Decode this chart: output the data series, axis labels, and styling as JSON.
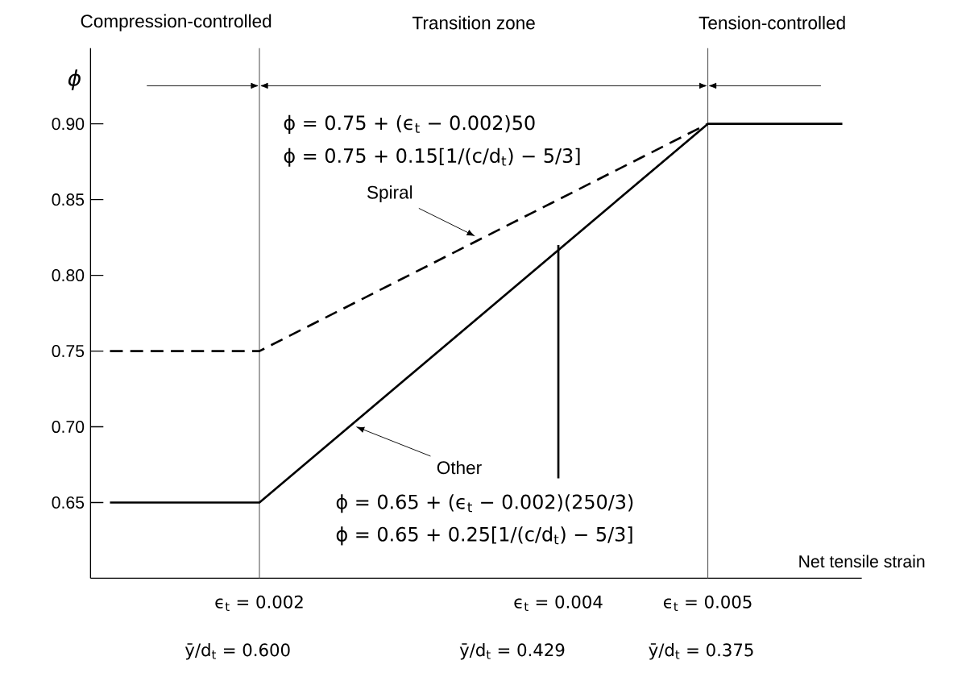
{
  "chart_data": {
    "type": "line",
    "xlabel": "Net tensile strain",
    "ylabel": "ϕ",
    "xlim": [
      0.00087,
      0.00603
    ],
    "ylim": [
      0.6,
      0.95
    ],
    "xticks": [
      {
        "value": 0.002,
        "label": "ϵ$_{t}$ = 0.002"
      },
      {
        "value": 0.004,
        "label": "ϵ$_{t}$ = 0.004"
      },
      {
        "value": 0.005,
        "label": "ϵ$_{t}$ = 0.005"
      }
    ],
    "yticks": [
      {
        "value": 0.65,
        "label": "0.65"
      },
      {
        "value": 0.7,
        "label": "0.70"
      },
      {
        "value": 0.75,
        "label": "0.75"
      },
      {
        "value": 0.8,
        "label": "0.80"
      },
      {
        "value": 0.85,
        "label": "0.85"
      },
      {
        "value": 0.9,
        "label": "0.90"
      }
    ],
    "series": [
      {
        "color": "#000000",
        "line_style": "dashed",
        "x": [
          0.001,
          0.002,
          0.005
        ],
        "values": [
          0.75,
          0.75,
          0.9
        ]
      },
      {
        "color": "#000000",
        "line_style": "solid",
        "x": [
          0.001,
          0.002,
          0.005,
          0.0059
        ],
        "values": [
          0.65,
          0.65,
          0.9,
          0.9
        ]
      },
      {
        "color": "#000000",
        "line_style": "solid",
        "x": [
          0.004,
          0.004
        ],
        "values": [
          0.666,
          0.82
        ]
      }
    ],
    "ref_lines": [
      {
        "axis": "x",
        "value": 0.002,
        "color": "#555555"
      },
      {
        "axis": "x",
        "value": 0.005,
        "color": "#555555"
      }
    ],
    "annotations": [
      "ϕ = 0.75 + (ϵ$_{t}$ − 0.002)50",
      "ϕ = 0.75 + 0.15[1/(c/d$_{t}$) − 5/3]",
      "ϕ = 0.65 + (ϵ$_{t}$ − 0.002)(250/3)",
      "ϕ = 0.65 + 0.25[1/(c/d$_{t}$) − 5/3]",
      "Compression-controlled",
      "Transition zone",
      "Tension-controlled",
      "Spiral",
      "Other",
      "ȳ/d$_{t}$ = 0.600",
      "ȳ/d$_{t}$ = 0.429",
      "ȳ/d$_{t}$ = 0.375"
    ]
  }
}
